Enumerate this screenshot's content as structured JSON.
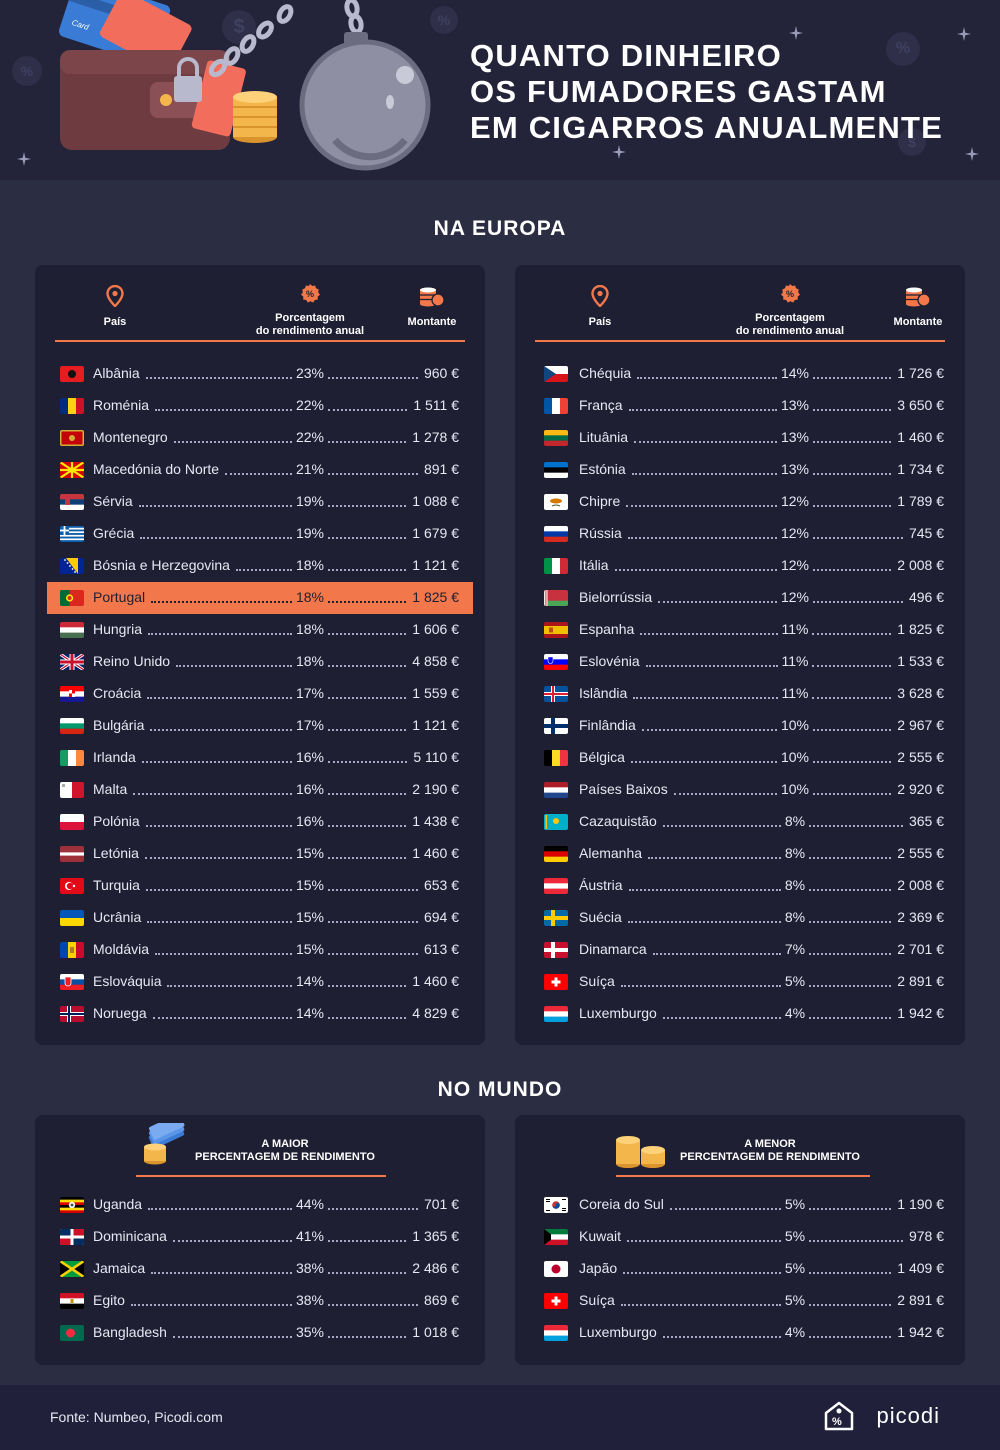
{
  "header": {
    "title_lines": [
      "QUANTO DINHEIRO",
      "OS FUMADORES GASTAM",
      "EM CIGARROS ANUALMENTE"
    ]
  },
  "europe": {
    "title": "NA EUROPA",
    "columns": {
      "country": "País",
      "percentage_1": "Porcentagem",
      "percentage_2": "do rendimento anual",
      "amount": "Montante"
    },
    "left": [
      {
        "name": "Albânia",
        "pct": "23%",
        "amount": "960 €",
        "flag": "albania"
      },
      {
        "name": "Roménia",
        "pct": "22%",
        "amount": "1 511 €",
        "flag": "romania"
      },
      {
        "name": "Montenegro",
        "pct": "22%",
        "amount": "1 278 €",
        "flag": "montenegro"
      },
      {
        "name": "Macedónia do Norte",
        "pct": "21%",
        "amount": "891 €",
        "flag": "north-macedonia"
      },
      {
        "name": "Sérvia",
        "pct": "19%",
        "amount": "1 088 €",
        "flag": "serbia"
      },
      {
        "name": "Grécia",
        "pct": "19%",
        "amount": "1 679 €",
        "flag": "greece"
      },
      {
        "name": "Bósnia e Herzegovina",
        "pct": "18%",
        "amount": "1 121 €",
        "flag": "bosnia"
      },
      {
        "name": "Portugal",
        "pct": "18%",
        "amount": "1 825 €",
        "flag": "portugal",
        "highlight": true
      },
      {
        "name": "Hungria",
        "pct": "18%",
        "amount": "1 606 €",
        "flag": "hungary"
      },
      {
        "name": "Reino Unido",
        "pct": "18%",
        "amount": "4 858 €",
        "flag": "uk"
      },
      {
        "name": "Croácia",
        "pct": "17%",
        "amount": "1 559 €",
        "flag": "croatia"
      },
      {
        "name": "Bulgária",
        "pct": "17%",
        "amount": "1 121 €",
        "flag": "bulgaria"
      },
      {
        "name": "Irlanda",
        "pct": "16%",
        "amount": "5 110 €",
        "flag": "ireland"
      },
      {
        "name": "Malta",
        "pct": "16%",
        "amount": "2 190 €",
        "flag": "malta"
      },
      {
        "name": "Polónia",
        "pct": "16%",
        "amount": "1 438 €",
        "flag": "poland"
      },
      {
        "name": "Letónia",
        "pct": "15%",
        "amount": "1 460 €",
        "flag": "latvia"
      },
      {
        "name": "Turquia",
        "pct": "15%",
        "amount": "653 €",
        "flag": "turkey"
      },
      {
        "name": "Ucrânia",
        "pct": "15%",
        "amount": "694 €",
        "flag": "ukraine"
      },
      {
        "name": "Moldávia",
        "pct": "15%",
        "amount": "613 €",
        "flag": "moldova"
      },
      {
        "name": "Eslováquia",
        "pct": "14%",
        "amount": "1 460 €",
        "flag": "slovakia"
      },
      {
        "name": "Noruega",
        "pct": "14%",
        "amount": "4 829 €",
        "flag": "norway"
      }
    ],
    "right": [
      {
        "name": "Chéquia",
        "pct": "14%",
        "amount": "1 726 €",
        "flag": "czechia"
      },
      {
        "name": "França",
        "pct": "13%",
        "amount": "3 650 €",
        "flag": "france"
      },
      {
        "name": "Lituânia",
        "pct": "13%",
        "amount": "1 460 €",
        "flag": "lithuania"
      },
      {
        "name": "Estónia",
        "pct": "13%",
        "amount": "1 734 €",
        "flag": "estonia"
      },
      {
        "name": "Chipre",
        "pct": "12%",
        "amount": "1 789 €",
        "flag": "cyprus"
      },
      {
        "name": "Rússia",
        "pct": "12%",
        "amount": "745 €",
        "flag": "russia"
      },
      {
        "name": "Itália",
        "pct": "12%",
        "amount": "2 008 €",
        "flag": "italy"
      },
      {
        "name": "Bielorrússia",
        "pct": "12%",
        "amount": "496 €",
        "flag": "belarus"
      },
      {
        "name": "Espanha",
        "pct": "11%",
        "amount": "1 825 €",
        "flag": "spain"
      },
      {
        "name": "Eslovénia",
        "pct": "11%",
        "amount": "1 533 €",
        "flag": "slovenia"
      },
      {
        "name": "Islândia",
        "pct": "11%",
        "amount": "3 628 €",
        "flag": "iceland"
      },
      {
        "name": "Finlândia",
        "pct": "10%",
        "amount": "2 967 €",
        "flag": "finland"
      },
      {
        "name": "Bélgica",
        "pct": "10%",
        "amount": "2 555 €",
        "flag": "belgium"
      },
      {
        "name": "Países Baixos",
        "pct": "10%",
        "amount": "2 920 €",
        "flag": "netherlands"
      },
      {
        "name": "Cazaquistão",
        "pct": "8%",
        "amount": "365 €",
        "flag": "kazakhstan"
      },
      {
        "name": "Alemanha",
        "pct": "8%",
        "amount": "2 555 €",
        "flag": "germany"
      },
      {
        "name": "Áustria",
        "pct": "8%",
        "amount": "2 008 €",
        "flag": "austria"
      },
      {
        "name": "Suécia",
        "pct": "8%",
        "amount": "2 369 €",
        "flag": "sweden"
      },
      {
        "name": "Dinamarca",
        "pct": "7%",
        "amount": "2 701 €",
        "flag": "denmark"
      },
      {
        "name": "Suíça",
        "pct": "5%",
        "amount": "2 891 €",
        "flag": "switzerland"
      },
      {
        "name": "Luxemburgo",
        "pct": "4%",
        "amount": "1 942 €",
        "flag": "luxembourg"
      }
    ]
  },
  "world": {
    "title": "NO MUNDO",
    "highest": {
      "heading_1": "A MAIOR",
      "heading_2": "PERCENTAGEM DE RENDIMENTO",
      "rows": [
        {
          "name": "Uganda",
          "pct": "44%",
          "amount": "701 €",
          "flag": "uganda"
        },
        {
          "name": "Dominicana",
          "pct": "41%",
          "amount": "1 365 €",
          "flag": "dominican"
        },
        {
          "name": "Jamaica",
          "pct": "38%",
          "amount": "2 486 €",
          "flag": "jamaica"
        },
        {
          "name": "Egito",
          "pct": "38%",
          "amount": "869 €",
          "flag": "egypt"
        },
        {
          "name": "Bangladesh",
          "pct": "35%",
          "amount": "1 018 €",
          "flag": "bangladesh"
        }
      ]
    },
    "lowest": {
      "heading_1": "A MENOR",
      "heading_2": "PERCENTAGEM DE RENDIMENTO",
      "rows": [
        {
          "name": "Coreia do Sul",
          "pct": "5%",
          "amount": "1 190 €",
          "flag": "south-korea"
        },
        {
          "name": "Kuwait",
          "pct": "5%",
          "amount": "978 €",
          "flag": "kuwait"
        },
        {
          "name": "Japão",
          "pct": "5%",
          "amount": "1 409 €",
          "flag": "japan"
        },
        {
          "name": "Suíça",
          "pct": "5%",
          "amount": "2 891 €",
          "flag": "switzerland"
        },
        {
          "name": "Luxemburgo",
          "pct": "4%",
          "amount": "1 942 €",
          "flag": "luxembourg"
        }
      ]
    }
  },
  "footer": {
    "source": "Fonte: Numbeo, Picodi.com",
    "brand": "picodi"
  },
  "colors": {
    "accent": "#f2784b",
    "background": "#2b2d42",
    "panel": "#1f1f33"
  }
}
